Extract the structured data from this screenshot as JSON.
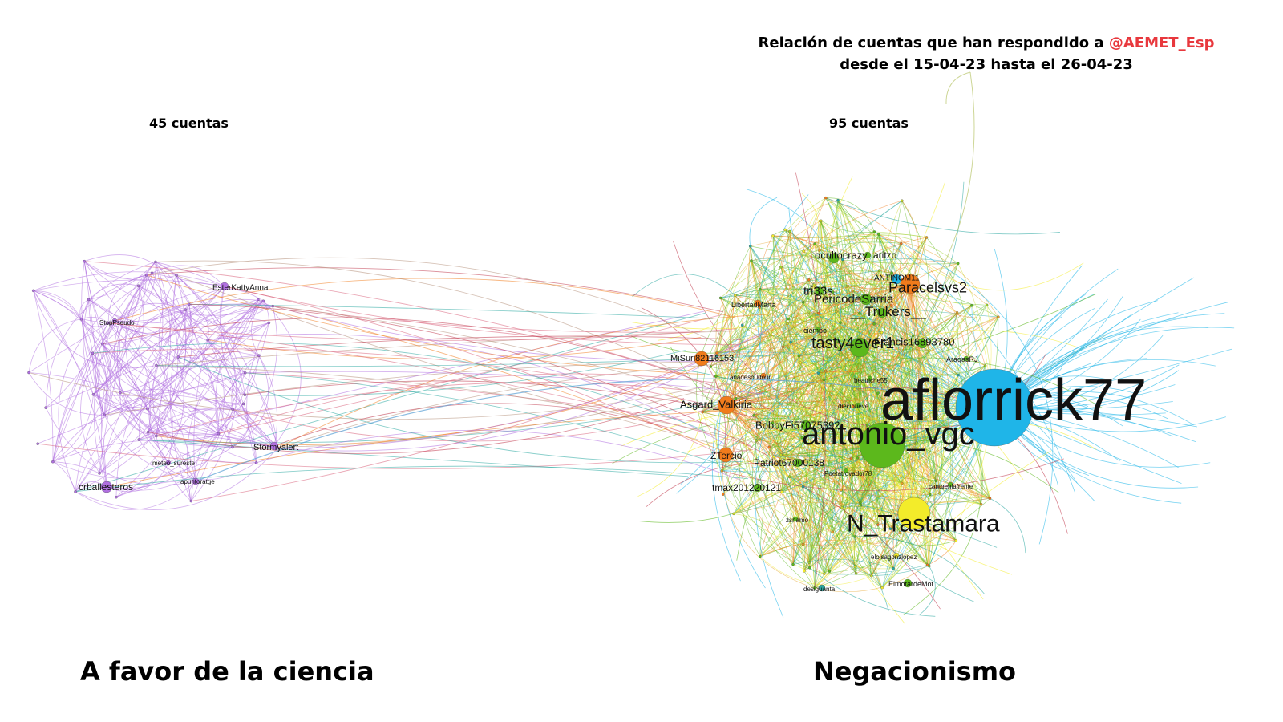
{
  "title": {
    "line1_prefix": "Relación de cuentas que han respondido a",
    "mention": "@AEMET_Esp",
    "line2": "desde el 15-04-23 hasta el 26-04-23"
  },
  "left_cluster": {
    "count_label": "45 cuentas",
    "caption": "A favor de la ciencia",
    "color": "#c66fd6"
  },
  "right_cluster": {
    "count_label": "95 cuentas",
    "caption": "Negacionismo"
  },
  "colors": {
    "purple": "#b070e0",
    "orange": "#f07b1c",
    "green": "#5cb81c",
    "blue": "#1fb5e8",
    "yellow": "#f3ec2a",
    "teal": "#2aa7a0",
    "red": "#c0364a",
    "mention_red": "#e8383d"
  },
  "nodes": [
    {
      "label": "aflorrick77",
      "group": "blue",
      "size": "xl"
    },
    {
      "label": "antonio_vgc",
      "group": "green",
      "size": "l"
    },
    {
      "label": "N_Trastamara",
      "group": "yellow",
      "size": "m"
    },
    {
      "label": "Paracelsvs2",
      "group": "orange",
      "size": "s"
    },
    {
      "label": "tasty4ever1",
      "group": "green",
      "size": "s"
    },
    {
      "label": "Asgard_Valkiria",
      "group": "orange",
      "size": "s"
    },
    {
      "label": "ZTercio",
      "group": "orange",
      "size": "s"
    },
    {
      "label": "MiSuri82116153",
      "group": "orange",
      "size": "s"
    },
    {
      "label": "ocultocrazy",
      "group": "green",
      "size": "s"
    },
    {
      "label": "aritzo",
      "group": "green",
      "size": "xs"
    },
    {
      "label": "tri33s",
      "group": "green",
      "size": "xs"
    },
    {
      "label": "PericodeSarria",
      "group": "green",
      "size": "xs"
    },
    {
      "label": "__Trukers__",
      "group": "green",
      "size": "xs"
    },
    {
      "label": "Francis16893780",
      "group": "green",
      "size": "xs"
    },
    {
      "label": "BobbyFi57075392",
      "group": "green",
      "size": "xs"
    },
    {
      "label": "Patriot67000138",
      "group": "green",
      "size": "xs"
    },
    {
      "label": "tmax201220121",
      "group": "green",
      "size": "xs"
    },
    {
      "label": "ANTINOM11",
      "group": "blue",
      "size": "xs"
    },
    {
      "label": "LibertadMarta",
      "group": "orange",
      "size": "xs"
    },
    {
      "label": "AragasRJ",
      "group": "green",
      "size": "xs"
    },
    {
      "label": "ElmotardeMot",
      "group": "green",
      "size": "xs"
    },
    {
      "label": "eloisagonzlopez",
      "group": "yellow",
      "size": "xs"
    },
    {
      "label": "cantoenlafrente",
      "group": "green",
      "size": "xs"
    },
    {
      "label": "Poetatrovador78",
      "group": "green",
      "size": "xs"
    },
    {
      "label": "anadesoudour",
      "group": "orange",
      "size": "xs"
    },
    {
      "label": "ciempo",
      "group": "green",
      "size": "xs"
    },
    {
      "label": "beatriche55",
      "group": "green",
      "size": "xs"
    },
    {
      "label": "diecinueve",
      "group": "green",
      "size": "xs"
    },
    {
      "label": "zsnamo",
      "group": "green",
      "size": "xs"
    },
    {
      "label": "desiguanta",
      "group": "teal",
      "size": "xs"
    },
    {
      "label": "crballesteros",
      "group": "purple",
      "size": "s"
    },
    {
      "label": "Stormyalert",
      "group": "purple",
      "size": "s"
    },
    {
      "label": "EsterKattyAnna",
      "group": "purple",
      "size": "s"
    },
    {
      "label": "StopPseudo",
      "group": "purple",
      "size": "xs"
    },
    {
      "label": "meteo_sureste",
      "group": "purple",
      "size": "xs"
    },
    {
      "label": "apuntoratge",
      "group": "purple",
      "size": "xs"
    }
  ]
}
